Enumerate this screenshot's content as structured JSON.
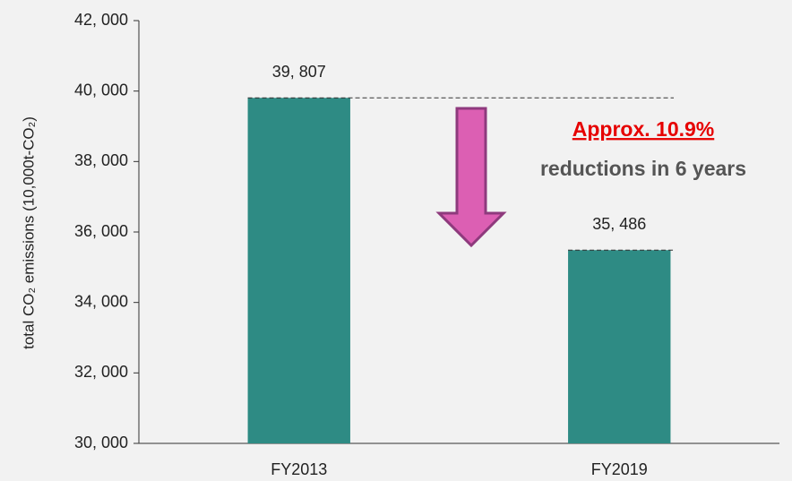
{
  "chart_data": {
    "type": "bar",
    "y_label": "total CO₂ emissions (10,000t-CO₂)",
    "categories": [
      "FY2013",
      "FY2019"
    ],
    "values": [
      39807,
      35486
    ],
    "value_labels": [
      "39, 807",
      "35, 486"
    ],
    "color": "#2e8b84",
    "ylim": [
      30000,
      42000
    ],
    "yticks": [
      {
        "value": 30000,
        "label": "30, 000"
      },
      {
        "value": 32000,
        "label": "32, 000"
      },
      {
        "value": 34000,
        "label": "34, 000"
      },
      {
        "value": 36000,
        "label": "36, 000"
      },
      {
        "value": 38000,
        "label": "38, 000"
      },
      {
        "value": 40000,
        "label": "40, 000"
      },
      {
        "value": 42000,
        "label": "42, 000"
      }
    ],
    "annotations": [
      "Approx. 10.9%",
      "reductions in 6 years"
    ]
  }
}
